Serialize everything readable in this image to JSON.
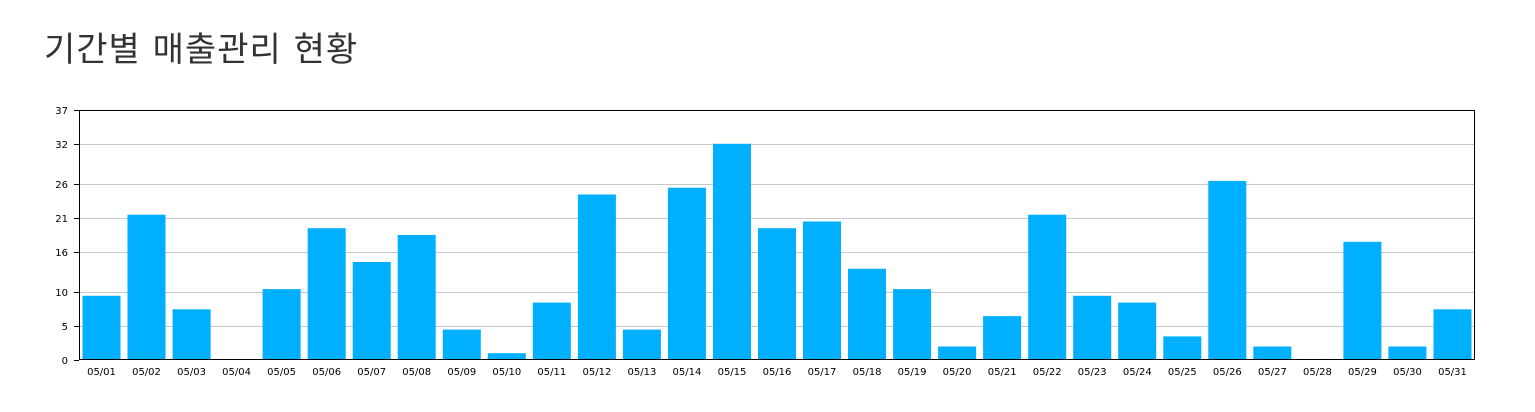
{
  "page": {
    "title": "기간별 매출관리 현황"
  },
  "colors": {
    "bar": "#00b0ff",
    "grid": "#c8c8c8",
    "axis": "#000000"
  },
  "chart_data": {
    "type": "bar",
    "title": "",
    "xlabel": "",
    "ylabel": "",
    "grid": true,
    "legend": "none",
    "ylim": [
      0,
      37
    ],
    "y_ticks": [
      0,
      5,
      10,
      16,
      21,
      26,
      32,
      37
    ],
    "categories": [
      "05/01",
      "05/02",
      "05/03",
      "05/04",
      "05/05",
      "05/06",
      "05/07",
      "05/08",
      "05/09",
      "05/10",
      "05/11",
      "05/12",
      "05/13",
      "05/14",
      "05/15",
      "05/16",
      "05/17",
      "05/18",
      "05/19",
      "05/20",
      "05/21",
      "05/22",
      "05/23",
      "05/24",
      "05/25",
      "05/26",
      "05/27",
      "05/28",
      "05/29",
      "05/30",
      "05/31"
    ],
    "values": [
      9.5,
      21.5,
      7.5,
      0,
      10.5,
      19.5,
      14.5,
      18.5,
      4.5,
      1,
      8.5,
      24.5,
      4.5,
      25.5,
      32,
      19.5,
      20.5,
      13.5,
      10.5,
      2,
      6.5,
      21.5,
      9.5,
      8.5,
      3.5,
      26.5,
      2,
      0,
      17.5,
      2,
      7.5
    ]
  }
}
